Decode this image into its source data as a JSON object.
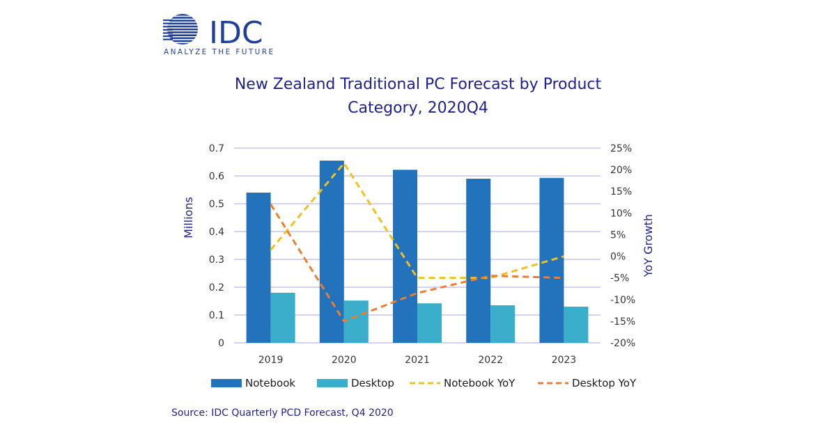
{
  "logo": {
    "wordmark": "IDC",
    "tagline": "ANALYZE THE FUTURE"
  },
  "source": "Source: IDC Quarterly PCD Forecast, Q4 2020",
  "colors": {
    "notebook": "#2272bc",
    "desktop": "#3aaecb",
    "notebook_yoy": "#f2c01e",
    "desktop_yoy": "#ee7d31",
    "title": "#1f1f8c",
    "gridline": "#b9b6e6",
    "logo": "#1f3f9c"
  },
  "chart_data": {
    "type": "bar",
    "title_lines": [
      "New Zealand Traditional PC Forecast by Product",
      "Category, 2020Q4"
    ],
    "categories": [
      "2019",
      "2020",
      "2021",
      "2022",
      "2023"
    ],
    "ylabel": "Millions",
    "y2label": "YoY Growth",
    "ylim": [
      0,
      0.7
    ],
    "yticks": [
      "0",
      "0.1",
      "0.2",
      "0.3",
      "0.4",
      "0.5",
      "0.6",
      "0.7"
    ],
    "y2lim": [
      -20,
      25
    ],
    "y2ticks": [
      "-20%",
      "-15%",
      "-10%",
      "-5%",
      "0%",
      "5%",
      "10%",
      "15%",
      "20%",
      "25%"
    ],
    "grid": true,
    "legend_position": "bottom",
    "series": [
      {
        "name": "Notebook",
        "type": "bar",
        "axis": "left",
        "values": [
          0.54,
          0.655,
          0.622,
          0.59,
          0.593
        ]
      },
      {
        "name": "Desktop",
        "type": "bar",
        "axis": "left",
        "values": [
          0.18,
          0.152,
          0.142,
          0.135,
          0.13
        ]
      },
      {
        "name": "Notebook YoY",
        "type": "line",
        "style": "dashed",
        "axis": "right",
        "values": [
          1.5,
          21.5,
          -5,
          -5,
          0
        ]
      },
      {
        "name": "Desktop YoY",
        "type": "line",
        "style": "dashed",
        "axis": "right",
        "values": [
          12,
          -15,
          -8.5,
          -4.5,
          -5
        ]
      }
    ]
  }
}
